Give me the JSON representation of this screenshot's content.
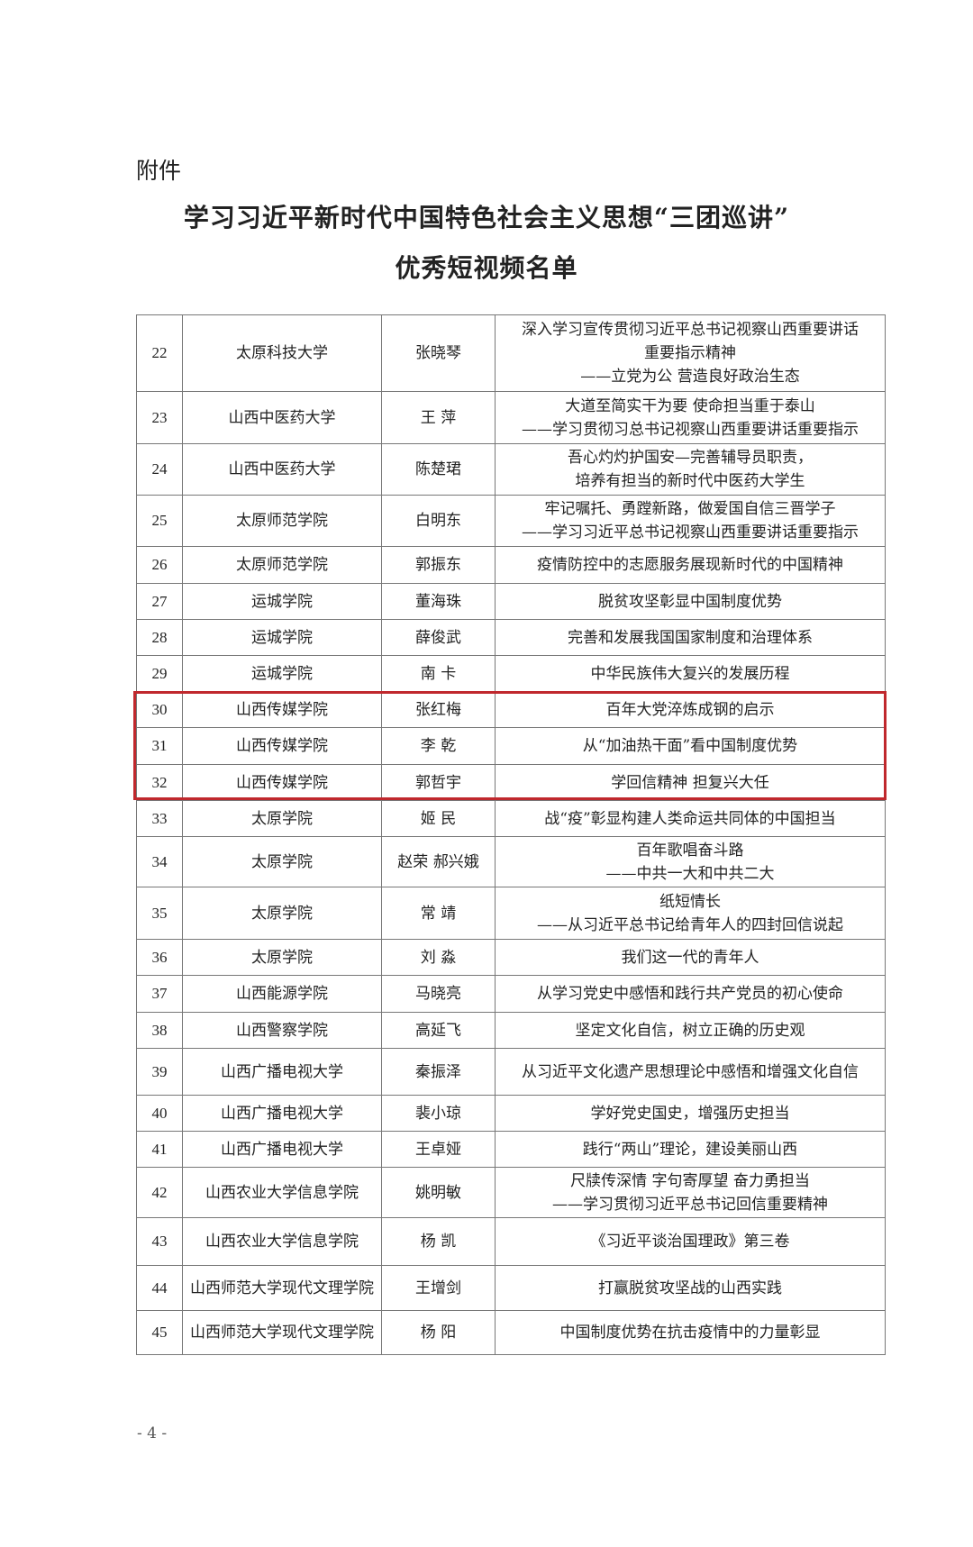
{
  "attachment_label": "附件",
  "title_line1": "学习习近平新时代中国特色社会主义思想“三团巡讲”",
  "title_line2": "优秀短视频名单",
  "highlight_color": "#c0282d",
  "rows": [
    {
      "no": "22",
      "school": "太原科技大学",
      "author": "张晓琴",
      "work": [
        "深入学习宣传贯彻习近平总书记视察山西重要讲话",
        "重要指示精神",
        "——立党为公 营造良好政治生态"
      ]
    },
    {
      "no": "23",
      "school": "山西中医药大学",
      "author": "王 萍",
      "work": [
        "大道至简实干为要 使命担当重于泰山",
        "——学习贯彻习总书记视察山西重要讲话重要指示"
      ]
    },
    {
      "no": "24",
      "school": "山西中医药大学",
      "author": "陈楚珺",
      "work": [
        "吾心灼灼护国安—完善辅导员职责，",
        "培养有担当的新时代中医药大学生"
      ]
    },
    {
      "no": "25",
      "school": "太原师范学院",
      "author": "白明东",
      "work": [
        "牢记嘱托、勇蹚新路，做爱国自信三晋学子",
        "——学习习近平总书记视察山西重要讲话重要指示"
      ]
    },
    {
      "no": "26",
      "school": "太原师范学院",
      "author": "郭振东",
      "work": [
        "疫情防控中的志愿服务展现新时代的中国精神"
      ]
    },
    {
      "no": "27",
      "school": "运城学院",
      "author": "董海珠",
      "work": [
        "脱贫攻坚彰显中国制度优势"
      ]
    },
    {
      "no": "28",
      "school": "运城学院",
      "author": "薛俊武",
      "work": [
        "完善和发展我国国家制度和治理体系"
      ]
    },
    {
      "no": "29",
      "school": "运城学院",
      "author": "南 卡",
      "work": [
        "中华民族伟大复兴的发展历程"
      ]
    },
    {
      "no": "30",
      "school": "山西传媒学院",
      "author": "张红梅",
      "work": [
        "百年大党淬炼成钢的启示"
      ]
    },
    {
      "no": "31",
      "school": "山西传媒学院",
      "author": "李 乾",
      "work": [
        "从“加油热干面”看中国制度优势"
      ]
    },
    {
      "no": "32",
      "school": "山西传媒学院",
      "author": "郭哲宇",
      "work": [
        "学回信精神 担复兴大任"
      ]
    },
    {
      "no": "33",
      "school": "太原学院",
      "author": "姬 民",
      "work": [
        "战“疫”彰显构建人类命运共同体的中国担当"
      ]
    },
    {
      "no": "34",
      "school": "太原学院",
      "author": "赵荣 郝兴娥",
      "work": [
        "百年歌唱奋斗路",
        "——中共一大和中共二大"
      ]
    },
    {
      "no": "35",
      "school": "太原学院",
      "author": "常 靖",
      "work": [
        "纸短情长",
        "——从习近平总书记给青年人的四封回信说起"
      ]
    },
    {
      "no": "36",
      "school": "太原学院",
      "author": "刘 淼",
      "work": [
        "我们这一代的青年人"
      ]
    },
    {
      "no": "37",
      "school": "山西能源学院",
      "author": "马晓亮",
      "work": [
        "从学习党史中感悟和践行共产党员的初心使命"
      ]
    },
    {
      "no": "38",
      "school": "山西警察学院",
      "author": "高延飞",
      "work": [
        "坚定文化自信，树立正确的历史观"
      ]
    },
    {
      "no": "39",
      "school": "山西广播电视大学",
      "author": "秦振泽",
      "work": [
        "从习近平文化遗产思想理论中感悟和增强文化自信"
      ]
    },
    {
      "no": "40",
      "school": "山西广播电视大学",
      "author": "裴小琼",
      "work": [
        "学好党史国史，增强历史担当"
      ]
    },
    {
      "no": "41",
      "school": "山西广播电视大学",
      "author": "王卓娅",
      "work": [
        "践行“两山”理论，建设美丽山西"
      ]
    },
    {
      "no": "42",
      "school": "山西农业大学信息学院",
      "author": "姚明敏",
      "work": [
        "尺牍传深情 字句寄厚望 奋力勇担当",
        "——学习贯彻习近平总书记回信重要精神"
      ]
    },
    {
      "no": "43",
      "school": "山西农业大学信息学院",
      "author": "杨 凯",
      "work": [
        "《习近平谈治国理政》第三卷"
      ]
    },
    {
      "no": "44",
      "school": "山西师范大学现代文理学院",
      "author": "王增剑",
      "work": [
        "打赢脱贫攻坚战的山西实践"
      ]
    },
    {
      "no": "45",
      "school": "山西师范大学现代文理学院",
      "author": "杨 阳",
      "work": [
        "中国制度优势在抗击疫情中的力量彰显"
      ]
    }
  ],
  "page_number": "- 4 -"
}
